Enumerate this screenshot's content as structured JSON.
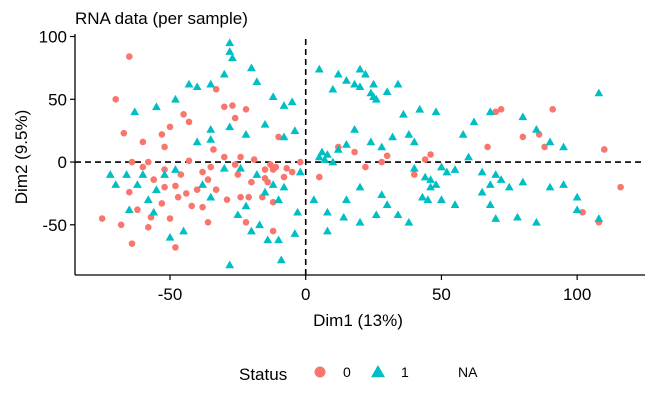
{
  "chart_data": {
    "type": "scatter",
    "title": "RNA data (per sample)",
    "xlabel": "Dim1 (13%)",
    "ylabel": "Dim2 (9.5%)",
    "xlim": [
      -85,
      125
    ],
    "ylim": [
      -90,
      102
    ],
    "xticks": [
      -50,
      0,
      50,
      100
    ],
    "yticks": [
      -50,
      0,
      50,
      100
    ],
    "reference_lines": {
      "x": 0,
      "y": 0,
      "style": "dashed"
    },
    "legend": {
      "title": "Status",
      "placement": "bottom",
      "entries": [
        {
          "label": "0",
          "shape": "circle",
          "color": "#F8766D"
        },
        {
          "label": "1",
          "shape": "triangle",
          "color": "#00BFC4"
        },
        {
          "label": "NA",
          "shape": "none",
          "color": "#7F7F7F"
        }
      ]
    },
    "series": [
      {
        "name": "0",
        "shape": "circle",
        "color": "#F8766D",
        "points": [
          [
            -65,
            84
          ],
          [
            -70,
            50
          ],
          [
            -67,
            23
          ],
          [
            -60,
            16
          ],
          [
            -53,
            22
          ],
          [
            -52,
            12
          ],
          [
            -64,
            0
          ],
          [
            -58,
            0
          ],
          [
            -52,
            -6
          ],
          [
            -46,
            -10
          ],
          [
            -43,
            1
          ],
          [
            -48,
            -19
          ],
          [
            -44,
            -25
          ],
          [
            -40,
            -22
          ],
          [
            -42,
            -35
          ],
          [
            -38,
            -8
          ],
          [
            -45,
            38
          ],
          [
            -50,
            28
          ],
          [
            -43,
            32
          ],
          [
            -33,
            58
          ],
          [
            -30,
            44
          ],
          [
            -27,
            45
          ],
          [
            -26,
            35
          ],
          [
            -34,
            10
          ],
          [
            -30,
            4
          ],
          [
            -26,
            -2
          ],
          [
            -33,
            -22
          ],
          [
            -29,
            -30
          ],
          [
            -24,
            -28
          ],
          [
            -22,
            -48
          ],
          [
            -25,
            -10
          ],
          [
            -20,
            -16
          ],
          [
            -15,
            -6
          ],
          [
            -13,
            -2
          ],
          [
            -11,
            -4
          ],
          [
            -12,
            -6
          ],
          [
            -15,
            -13
          ],
          [
            -14,
            -16
          ],
          [
            -12,
            -32
          ],
          [
            -12,
            -55
          ],
          [
            -19,
            2
          ],
          [
            -16,
            -28
          ],
          [
            -10,
            20
          ],
          [
            -7,
            -5
          ],
          [
            -5,
            -8
          ],
          [
            -75,
            -45
          ],
          [
            -68,
            -50
          ],
          [
            -64,
            -65
          ],
          [
            -58,
            -52
          ],
          [
            -53,
            -33
          ],
          [
            -50,
            -45
          ],
          [
            -48,
            -68
          ],
          [
            -52,
            -20
          ],
          [
            -57,
            -44
          ],
          [
            -36,
            -48
          ],
          [
            -62,
            -38
          ],
          [
            -56,
            -14
          ],
          [
            -60,
            -4
          ],
          [
            -24,
            4
          ],
          [
            -36,
            -14
          ],
          [
            -21,
            -28
          ],
          [
            -35,
            -4
          ],
          [
            -47,
            -28
          ],
          [
            -65,
            -24
          ],
          [
            -38,
            -36
          ],
          [
            -8,
            -12
          ],
          [
            -22,
            42
          ],
          [
            -2,
            0
          ],
          [
            5,
            -12
          ],
          [
            12,
            12
          ],
          [
            18,
            8
          ],
          [
            22,
            -4
          ],
          [
            28,
            0
          ],
          [
            40,
            -10
          ],
          [
            44,
            2
          ],
          [
            46,
            6
          ],
          [
            70,
            40
          ],
          [
            72,
            42
          ],
          [
            80,
            20
          ],
          [
            88,
            12
          ],
          [
            102,
            -40
          ],
          [
            108,
            -48
          ],
          [
            116,
            -20
          ],
          [
            91,
            42
          ],
          [
            110,
            10
          ],
          [
            86,
            22
          ],
          [
            30,
            5
          ],
          [
            67,
            12
          ]
        ]
      },
      {
        "name": "1",
        "shape": "triangle",
        "color": "#00BFC4",
        "points": [
          [
            -28,
            95
          ],
          [
            -28,
            88
          ],
          [
            -40,
            60
          ],
          [
            -35,
            62
          ],
          [
            -30,
            70
          ],
          [
            -27,
            83
          ],
          [
            -20,
            75
          ],
          [
            -18,
            64
          ],
          [
            -12,
            52
          ],
          [
            -8,
            45
          ],
          [
            -5,
            48
          ],
          [
            -4,
            25
          ],
          [
            -8,
            20
          ],
          [
            -15,
            30
          ],
          [
            -22,
            22
          ],
          [
            -28,
            28
          ],
          [
            -35,
            26
          ],
          [
            -40,
            16
          ],
          [
            -35,
            18
          ],
          [
            -30,
            -5
          ],
          [
            -38,
            -18
          ],
          [
            -35,
            -28
          ],
          [
            -25,
            -42
          ],
          [
            -22,
            -35
          ],
          [
            -17,
            -50
          ],
          [
            -14,
            -62
          ],
          [
            -20,
            -55
          ],
          [
            -10,
            -62
          ],
          [
            -9,
            -78
          ],
          [
            -4,
            -57
          ],
          [
            -28,
            -82
          ],
          [
            -3,
            -40
          ],
          [
            -10,
            -30
          ],
          [
            -15,
            -24
          ],
          [
            -45,
            -55
          ],
          [
            -50,
            -60
          ],
          [
            -56,
            -40
          ],
          [
            -58,
            -30
          ],
          [
            -52,
            -10
          ],
          [
            -48,
            -6
          ],
          [
            -55,
            -22
          ],
          [
            -62,
            -18
          ],
          [
            -66,
            -10
          ],
          [
            -60,
            -10
          ],
          [
            -72,
            -10
          ],
          [
            -70,
            -18
          ],
          [
            -65,
            -38
          ],
          [
            -55,
            44
          ],
          [
            -63,
            40
          ],
          [
            -48,
            50
          ],
          [
            -43,
            62
          ],
          [
            -8,
            -20
          ],
          [
            -24,
            -5
          ],
          [
            -12,
            -18
          ],
          [
            -18,
            -10
          ],
          [
            -2,
            -8
          ],
          [
            8,
            -40
          ],
          [
            14,
            -44
          ],
          [
            20,
            -48
          ],
          [
            26,
            -42
          ],
          [
            34,
            -42
          ],
          [
            38,
            -48
          ],
          [
            43,
            -28
          ],
          [
            45,
            -30
          ],
          [
            50,
            -30
          ],
          [
            55,
            -34
          ],
          [
            65,
            -24
          ],
          [
            68,
            -34
          ],
          [
            70,
            -45
          ],
          [
            78,
            -44
          ],
          [
            85,
            -48
          ],
          [
            90,
            -20
          ],
          [
            95,
            -18
          ],
          [
            100,
            -38
          ],
          [
            108,
            -45
          ],
          [
            70,
            -10
          ],
          [
            72,
            -14
          ],
          [
            75,
            -20
          ],
          [
            80,
            -16
          ],
          [
            5,
            4
          ],
          [
            6,
            8
          ],
          [
            8,
            6
          ],
          [
            7,
            2
          ],
          [
            10,
            0
          ],
          [
            12,
            10
          ],
          [
            15,
            14
          ],
          [
            18,
            26
          ],
          [
            24,
            16
          ],
          [
            28,
            12
          ],
          [
            32,
            20
          ],
          [
            38,
            22
          ],
          [
            40,
            16
          ],
          [
            44,
            -12
          ],
          [
            46,
            -14
          ],
          [
            50,
            -4
          ],
          [
            52,
            -8
          ],
          [
            55,
            -6
          ],
          [
            60,
            4
          ],
          [
            65,
            -8
          ],
          [
            68,
            -18
          ],
          [
            5,
            74
          ],
          [
            10,
            58
          ],
          [
            12,
            70
          ],
          [
            15,
            65
          ],
          [
            18,
            62
          ],
          [
            20,
            60
          ],
          [
            22,
            70
          ],
          [
            24,
            55
          ],
          [
            26,
            50
          ],
          [
            25,
            52
          ],
          [
            25,
            62
          ],
          [
            20,
            74
          ],
          [
            30,
            56
          ],
          [
            34,
            62
          ],
          [
            36,
            38
          ],
          [
            42,
            42
          ],
          [
            48,
            40
          ],
          [
            58,
            22
          ],
          [
            62,
            32
          ],
          [
            68,
            40
          ],
          [
            80,
            36
          ],
          [
            85,
            26
          ],
          [
            90,
            16
          ],
          [
            95,
            12
          ],
          [
            100,
            -28
          ],
          [
            108,
            55
          ],
          [
            40,
            -5
          ],
          [
            3,
            -30
          ],
          [
            8,
            -55
          ],
          [
            15,
            -30
          ],
          [
            20,
            -20
          ],
          [
            28,
            -26
          ],
          [
            30,
            -34
          ],
          [
            46,
            -20
          ],
          [
            48,
            -18
          ]
        ]
      }
    ]
  }
}
